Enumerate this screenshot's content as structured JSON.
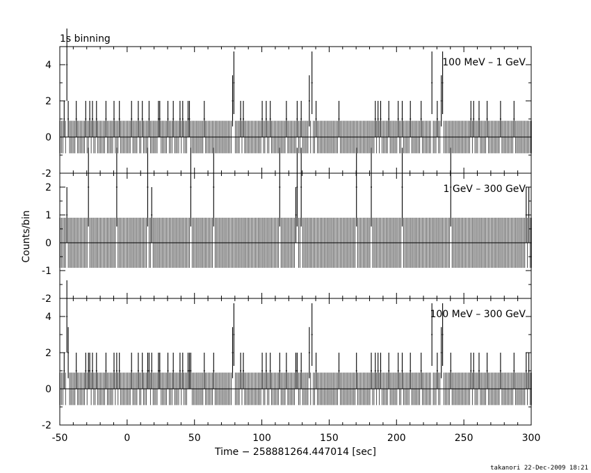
{
  "footer": "takanori 22-Dec-2009 18:21",
  "chart_data": {
    "type": "line",
    "title": "1s binning",
    "xlabel": "Time − 258881264.447014 [sec]",
    "ylabel": "Counts/bin",
    "xlim": [
      -50,
      300
    ],
    "x_ticks": [
      -50,
      0,
      50,
      100,
      150,
      200,
      250,
      300
    ],
    "grid": false,
    "panels": [
      {
        "label": "100 MeV – 1 GeV",
        "ylim": [
          -2,
          5
        ],
        "y_ticks": [
          -2,
          0,
          2,
          4
        ],
        "events": [
          {
            "t": -47.4,
            "c": 1
          },
          {
            "t": -45.3,
            "c": 4
          },
          {
            "t": -44.4,
            "c": 1
          },
          {
            "t": -38.5,
            "c": 1
          },
          {
            "t": -31.3,
            "c": 1
          },
          {
            "t": -27.7,
            "c": 1
          },
          {
            "t": -26.5,
            "c": 1
          },
          {
            "t": -22.8,
            "c": 1
          },
          {
            "t": -16.2,
            "c": 1
          },
          {
            "t": -10.4,
            "c": 1
          },
          {
            "t": -5.7,
            "c": 1
          },
          {
            "t": 2.5,
            "c": 1
          },
          {
            "t": 7.8,
            "c": 1
          },
          {
            "t": 11.1,
            "c": 1
          },
          {
            "t": 16.3,
            "c": 1
          },
          {
            "t": 22.6,
            "c": 1
          },
          {
            "t": 24.4,
            "c": 1
          },
          {
            "t": 30.0,
            "c": 1
          },
          {
            "t": 34.4,
            "c": 1
          },
          {
            "t": 38.7,
            "c": 1
          },
          {
            "t": 41.0,
            "c": 1
          },
          {
            "t": 44.7,
            "c": 1
          },
          {
            "t": 46.0,
            "c": 1
          },
          {
            "t": 57.0,
            "c": 1
          },
          {
            "t": 78.4,
            "c": 2
          },
          {
            "t": 79.2,
            "c": 3
          },
          {
            "t": 83.7,
            "c": 1
          },
          {
            "t": 86.2,
            "c": 1
          },
          {
            "t": 100.1,
            "c": 1
          },
          {
            "t": 103.1,
            "c": 1
          },
          {
            "t": 105.8,
            "c": 1
          },
          {
            "t": 118.4,
            "c": 1
          },
          {
            "t": 125.9,
            "c": 1
          },
          {
            "t": 129.1,
            "c": 1
          },
          {
            "t": 135.4,
            "c": 2
          },
          {
            "t": 136.6,
            "c": 3
          },
          {
            "t": 140.4,
            "c": 1
          },
          {
            "t": 156.8,
            "c": 1
          },
          {
            "t": 183.8,
            "c": 1
          },
          {
            "t": 185.8,
            "c": 1
          },
          {
            "t": 188.1,
            "c": 1
          },
          {
            "t": 194.3,
            "c": 1
          },
          {
            "t": 201.1,
            "c": 1
          },
          {
            "t": 203.9,
            "c": 1
          },
          {
            "t": 210.3,
            "c": 1
          },
          {
            "t": 217.5,
            "c": 1
          },
          {
            "t": 225.6,
            "c": 2
          },
          {
            "t": 226.3,
            "c": 3
          },
          {
            "t": 230.4,
            "c": 1
          },
          {
            "t": 233.2,
            "c": 2
          },
          {
            "t": 234.2,
            "c": 3
          },
          {
            "t": 254.5,
            "c": 1
          },
          {
            "t": 256.8,
            "c": 1
          },
          {
            "t": 260.7,
            "c": 1
          },
          {
            "t": 267.4,
            "c": 1
          },
          {
            "t": 276.9,
            "c": 1
          },
          {
            "t": 286.7,
            "c": 1
          }
        ]
      },
      {
        "label": "1 GeV – 300 GeV",
        "ylim": [
          -2,
          2.5
        ],
        "y_ticks": [
          -2,
          -1,
          0,
          1,
          2
        ],
        "events": [
          {
            "t": -45.1,
            "c": 1
          },
          {
            "t": -29.2,
            "c": 2
          },
          {
            "t": -8.5,
            "c": 2
          },
          {
            "t": 14.9,
            "c": 2
          },
          {
            "t": 18.2,
            "c": 1
          },
          {
            "t": 47.3,
            "c": 2
          },
          {
            "t": 63.9,
            "c": 2
          },
          {
            "t": 113.0,
            "c": 2
          },
          {
            "t": 124.5,
            "c": 1
          },
          {
            "t": 126.1,
            "c": 2
          },
          {
            "t": 128.9,
            "c": 2
          },
          {
            "t": 169.6,
            "c": 2
          },
          {
            "t": 180.5,
            "c": 2
          },
          {
            "t": 203.5,
            "c": 2
          },
          {
            "t": 239.9,
            "c": 2
          },
          {
            "t": 296.3,
            "c": 1
          },
          {
            "t": 298.0,
            "c": 1
          }
        ]
      },
      {
        "label": "100 MeV – 300 GeV",
        "ylim": [
          -2,
          5
        ],
        "y_ticks": [
          -2,
          0,
          2,
          4
        ],
        "events": [
          {
            "t": -47.4,
            "c": 1
          },
          {
            "t": -45.3,
            "c": 4
          },
          {
            "t": -44.4,
            "c": 2
          },
          {
            "t": -38.5,
            "c": 1
          },
          {
            "t": -31.3,
            "c": 1
          },
          {
            "t": -29.2,
            "c": 1
          },
          {
            "t": -27.7,
            "c": 1
          },
          {
            "t": -26.5,
            "c": 1
          },
          {
            "t": -22.8,
            "c": 1
          },
          {
            "t": -16.2,
            "c": 1
          },
          {
            "t": -10.4,
            "c": 1
          },
          {
            "t": -8.5,
            "c": 1
          },
          {
            "t": -5.7,
            "c": 1
          },
          {
            "t": 2.5,
            "c": 1
          },
          {
            "t": 7.8,
            "c": 1
          },
          {
            "t": 11.1,
            "c": 1
          },
          {
            "t": 14.9,
            "c": 1
          },
          {
            "t": 16.3,
            "c": 1
          },
          {
            "t": 18.2,
            "c": 1
          },
          {
            "t": 22.6,
            "c": 1
          },
          {
            "t": 24.4,
            "c": 1
          },
          {
            "t": 30.0,
            "c": 1
          },
          {
            "t": 34.4,
            "c": 1
          },
          {
            "t": 38.7,
            "c": 1
          },
          {
            "t": 41.0,
            "c": 1
          },
          {
            "t": 44.7,
            "c": 1
          },
          {
            "t": 46.0,
            "c": 1
          },
          {
            "t": 47.3,
            "c": 1
          },
          {
            "t": 57.0,
            "c": 1
          },
          {
            "t": 63.9,
            "c": 1
          },
          {
            "t": 78.4,
            "c": 2
          },
          {
            "t": 79.2,
            "c": 3
          },
          {
            "t": 83.7,
            "c": 1
          },
          {
            "t": 86.2,
            "c": 1
          },
          {
            "t": 100.1,
            "c": 1
          },
          {
            "t": 103.1,
            "c": 1
          },
          {
            "t": 105.8,
            "c": 1
          },
          {
            "t": 113.0,
            "c": 1
          },
          {
            "t": 118.4,
            "c": 1
          },
          {
            "t": 124.5,
            "c": 1
          },
          {
            "t": 125.9,
            "c": 1
          },
          {
            "t": 126.1,
            "c": 1
          },
          {
            "t": 128.9,
            "c": 1
          },
          {
            "t": 129.1,
            "c": 1
          },
          {
            "t": 135.4,
            "c": 2
          },
          {
            "t": 136.6,
            "c": 3
          },
          {
            "t": 140.4,
            "c": 1
          },
          {
            "t": 156.8,
            "c": 1
          },
          {
            "t": 169.6,
            "c": 1
          },
          {
            "t": 180.5,
            "c": 1
          },
          {
            "t": 183.8,
            "c": 1
          },
          {
            "t": 185.8,
            "c": 1
          },
          {
            "t": 188.1,
            "c": 1
          },
          {
            "t": 194.3,
            "c": 1
          },
          {
            "t": 201.1,
            "c": 1
          },
          {
            "t": 203.5,
            "c": 1
          },
          {
            "t": 203.9,
            "c": 1
          },
          {
            "t": 210.3,
            "c": 1
          },
          {
            "t": 217.5,
            "c": 1
          },
          {
            "t": 225.6,
            "c": 2
          },
          {
            "t": 226.3,
            "c": 3
          },
          {
            "t": 230.4,
            "c": 1
          },
          {
            "t": 233.2,
            "c": 2
          },
          {
            "t": 234.2,
            "c": 3
          },
          {
            "t": 239.9,
            "c": 1
          },
          {
            "t": 254.5,
            "c": 1
          },
          {
            "t": 256.8,
            "c": 1
          },
          {
            "t": 260.7,
            "c": 1
          },
          {
            "t": 267.4,
            "c": 1
          },
          {
            "t": 276.9,
            "c": 1
          },
          {
            "t": 286.7,
            "c": 1
          },
          {
            "t": 296.3,
            "c": 1
          },
          {
            "t": 298.0,
            "c": 1
          }
        ]
      }
    ]
  }
}
